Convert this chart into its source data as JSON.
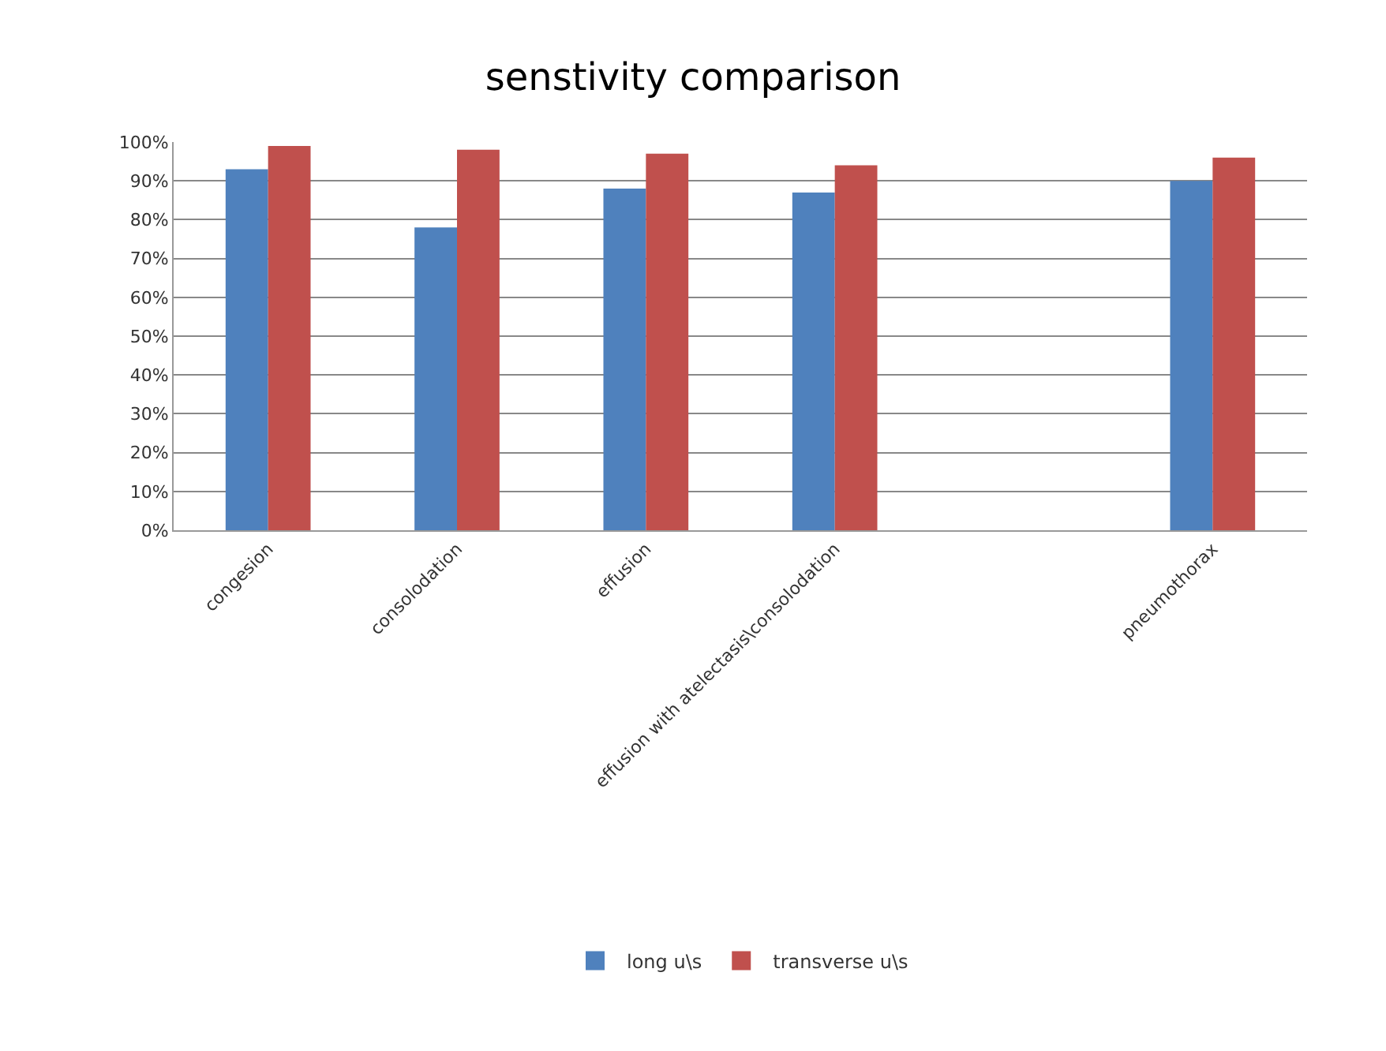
{
  "chart_data": {
    "type": "bar",
    "title": "senstivity comparison",
    "categories": [
      "congesion",
      "consolodation",
      "effusion",
      "effusion with atelectasis\\consolodation",
      null,
      "pneumothorax"
    ],
    "series": [
      {
        "name": "long u\\s",
        "color": "#4f81bd",
        "values": [
          0.93,
          0.78,
          0.88,
          0.87,
          null,
          0.9
        ]
      },
      {
        "name": "transverse u\\s",
        "color": "#c0504d",
        "values": [
          0.99,
          0.98,
          0.97,
          0.94,
          null,
          0.96
        ]
      }
    ],
    "ylim": [
      0,
      1
    ],
    "yticks": [
      {
        "value": 0,
        "label": "0%"
      },
      {
        "value": 0.1,
        "label": "10%"
      },
      {
        "value": 0.2,
        "label": "20%"
      },
      {
        "value": 0.3,
        "label": "30%"
      },
      {
        "value": 0.4,
        "label": "40%"
      },
      {
        "value": 0.5,
        "label": "50%"
      },
      {
        "value": 0.6,
        "label": "60%"
      },
      {
        "value": 0.7,
        "label": "70%"
      },
      {
        "value": 0.8,
        "label": "80%"
      },
      {
        "value": 0.9,
        "label": "90%"
      },
      {
        "value": 1,
        "label": "100%"
      }
    ],
    "grid": "y",
    "legend": "bottom"
  }
}
